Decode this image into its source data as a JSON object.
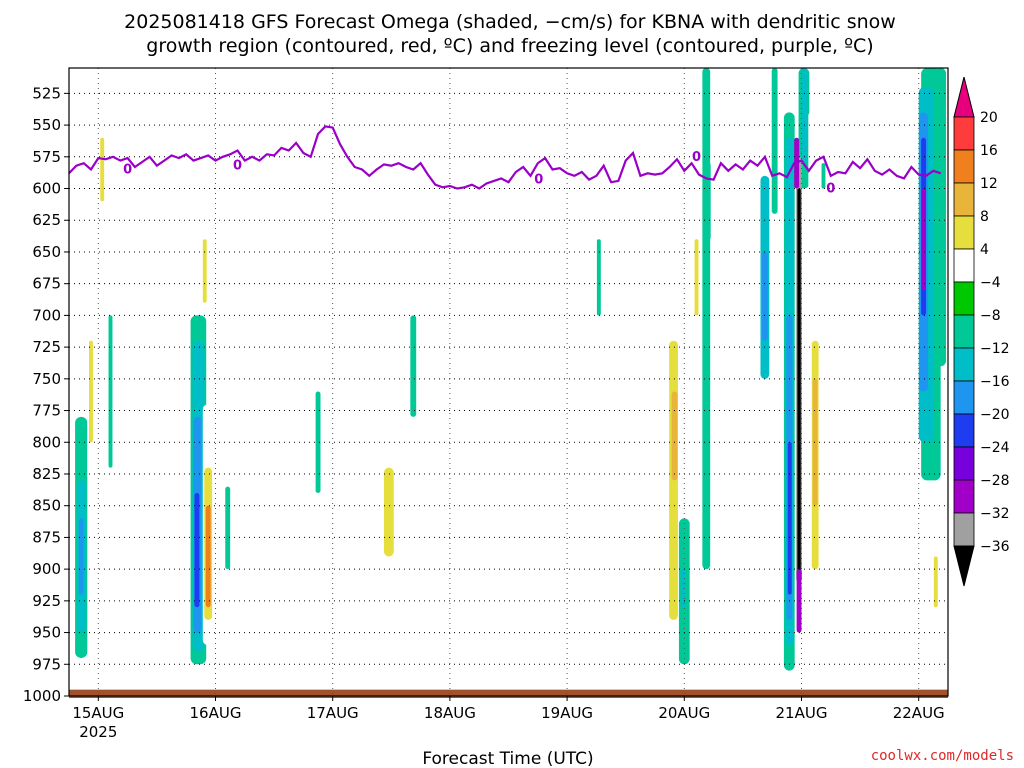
{
  "header": {
    "title_line1": "2025081418 GFS Forecast Omega (shaded, −cm/s) for KBNA with dendritic snow",
    "title_line2": "growth region (contoured, red, ºC) and freezing level (contoured, purple, ºC)"
  },
  "footer": {
    "credit": "coolwx.com/models"
  },
  "chart_data": {
    "type": "heatmap",
    "title": "2025081418 GFS Forecast Omega (shaded, −cm/s) for KBNA with dendritic snow growth region (contoured, red, ºC) and freezing level (contoured, purple, ºC)",
    "xlabel": "Forecast Time (UTC)",
    "ylabel": "",
    "x_range": [
      "2025-08-14T18",
      "2025-08-22T06"
    ],
    "y_range": [
      1000,
      505
    ],
    "y_ticks": [
      525,
      550,
      575,
      600,
      625,
      650,
      675,
      700,
      725,
      750,
      775,
      800,
      825,
      850,
      875,
      900,
      925,
      950,
      975,
      1000
    ],
    "x_ticks": [
      {
        "t": 6,
        "label": "15AUG",
        "sub": "2025"
      },
      {
        "t": 30,
        "label": "16AUG",
        "sub": ""
      },
      {
        "t": 54,
        "label": "17AUG",
        "sub": ""
      },
      {
        "t": 78,
        "label": "18AUG",
        "sub": ""
      },
      {
        "t": 102,
        "label": "19AUG",
        "sub": ""
      },
      {
        "t": 126,
        "label": "20AUG",
        "sub": ""
      },
      {
        "t": 150,
        "label": "21AUG",
        "sub": ""
      },
      {
        "t": 174,
        "label": "22AUG",
        "sub": ""
      }
    ],
    "grid": true,
    "colorbar": {
      "labels": [
        "20",
        "16",
        "12",
        "8",
        "4",
        "−4",
        "−8",
        "−12",
        "−16",
        "−20",
        "−24",
        "−28",
        "−32",
        "−36"
      ],
      "levels": [
        20,
        16,
        12,
        8,
        4,
        -4,
        -8,
        -12,
        -16,
        -20,
        -24,
        -28,
        -32,
        -36
      ],
      "colors": [
        "#ff3c3c",
        "#f07f1e",
        "#e8b43a",
        "#e6de3c",
        "#ffffff",
        "#00c800",
        "#00c896",
        "#00bec8",
        "#1e96f0",
        "#1e3cf0",
        "#7800dc",
        "#a000c8",
        "#a0a0a0",
        "#000000"
      ],
      "top_arrow_color": "#e6007e",
      "bottom_arrow_color": "#000000"
    },
    "freezing_level": {
      "label": "0",
      "color": "#9a00c8",
      "series": [
        [
          0,
          588
        ],
        [
          1,
          582
        ],
        [
          2,
          580
        ],
        [
          3,
          585
        ],
        [
          4,
          576
        ],
        [
          5,
          577
        ],
        [
          6,
          575
        ],
        [
          7,
          578
        ],
        [
          8,
          576
        ],
        [
          9,
          583
        ],
        [
          10,
          579
        ],
        [
          11,
          575
        ],
        [
          12,
          582
        ],
        [
          13,
          578
        ],
        [
          14,
          574
        ],
        [
          15,
          576
        ],
        [
          16,
          573
        ],
        [
          17,
          578
        ],
        [
          18,
          576
        ],
        [
          19,
          574
        ],
        [
          20,
          578
        ],
        [
          21,
          575
        ],
        [
          22,
          573
        ],
        [
          23,
          570
        ],
        [
          24,
          578
        ],
        [
          25,
          575
        ],
        [
          26,
          578
        ],
        [
          27,
          573
        ],
        [
          28,
          574
        ],
        [
          29,
          568
        ],
        [
          30,
          570
        ],
        [
          31,
          564
        ],
        [
          32,
          572
        ],
        [
          33,
          575
        ],
        [
          34,
          557
        ],
        [
          35,
          551
        ],
        [
          36,
          552
        ],
        [
          37,
          565
        ],
        [
          38,
          575
        ],
        [
          39,
          583
        ],
        [
          40,
          585
        ],
        [
          41,
          590
        ],
        [
          42,
          585
        ],
        [
          43,
          581
        ],
        [
          44,
          582
        ],
        [
          45,
          580
        ],
        [
          46,
          583
        ],
        [
          47,
          585
        ],
        [
          48,
          580
        ],
        [
          49,
          589
        ],
        [
          50,
          597
        ],
        [
          51,
          599
        ],
        [
          52,
          598
        ],
        [
          53,
          600
        ],
        [
          54,
          599
        ],
        [
          55,
          597
        ],
        [
          56,
          600
        ],
        [
          57,
          596
        ],
        [
          58,
          594
        ],
        [
          59,
          592
        ],
        [
          60,
          595
        ],
        [
          61,
          587
        ],
        [
          62,
          583
        ],
        [
          63,
          590
        ],
        [
          64,
          580
        ],
        [
          65,
          576
        ],
        [
          66,
          585
        ],
        [
          67,
          584
        ],
        [
          68,
          588
        ],
        [
          69,
          590
        ],
        [
          70,
          587
        ],
        [
          71,
          593
        ],
        [
          72,
          590
        ],
        [
          73,
          582
        ],
        [
          74,
          595
        ],
        [
          75,
          594
        ],
        [
          76,
          578
        ],
        [
          77,
          572
        ],
        [
          78,
          590
        ],
        [
          79,
          588
        ],
        [
          80,
          589
        ],
        [
          81,
          588
        ],
        [
          82,
          583
        ],
        [
          83,
          577
        ],
        [
          84,
          586
        ],
        [
          85,
          580
        ],
        [
          86,
          589
        ],
        [
          87,
          592
        ],
        [
          88,
          593
        ],
        [
          89,
          580
        ],
        [
          90,
          586
        ],
        [
          91,
          581
        ],
        [
          92,
          585
        ],
        [
          93,
          578
        ],
        [
          94,
          582
        ],
        [
          95,
          575
        ],
        [
          96,
          590
        ],
        [
          97,
          588
        ],
        [
          98,
          591
        ],
        [
          99,
          580
        ],
        [
          100,
          578
        ],
        [
          101,
          586
        ],
        [
          102,
          578
        ],
        [
          103,
          575
        ],
        [
          104,
          590
        ],
        [
          105,
          587
        ],
        [
          106,
          588
        ],
        [
          107,
          579
        ],
        [
          108,
          584
        ],
        [
          109,
          577
        ],
        [
          110,
          586
        ],
        [
          111,
          589
        ],
        [
          112,
          585
        ],
        [
          113,
          590
        ],
        [
          114,
          592
        ],
        [
          115,
          583
        ],
        [
          116,
          589
        ],
        [
          117,
          590
        ],
        [
          118,
          586
        ],
        [
          119,
          588
        ]
      ]
    },
    "snow_growth_region": {
      "color": "#e02020",
      "present": false
    },
    "ground_color": "#a0522d"
  }
}
